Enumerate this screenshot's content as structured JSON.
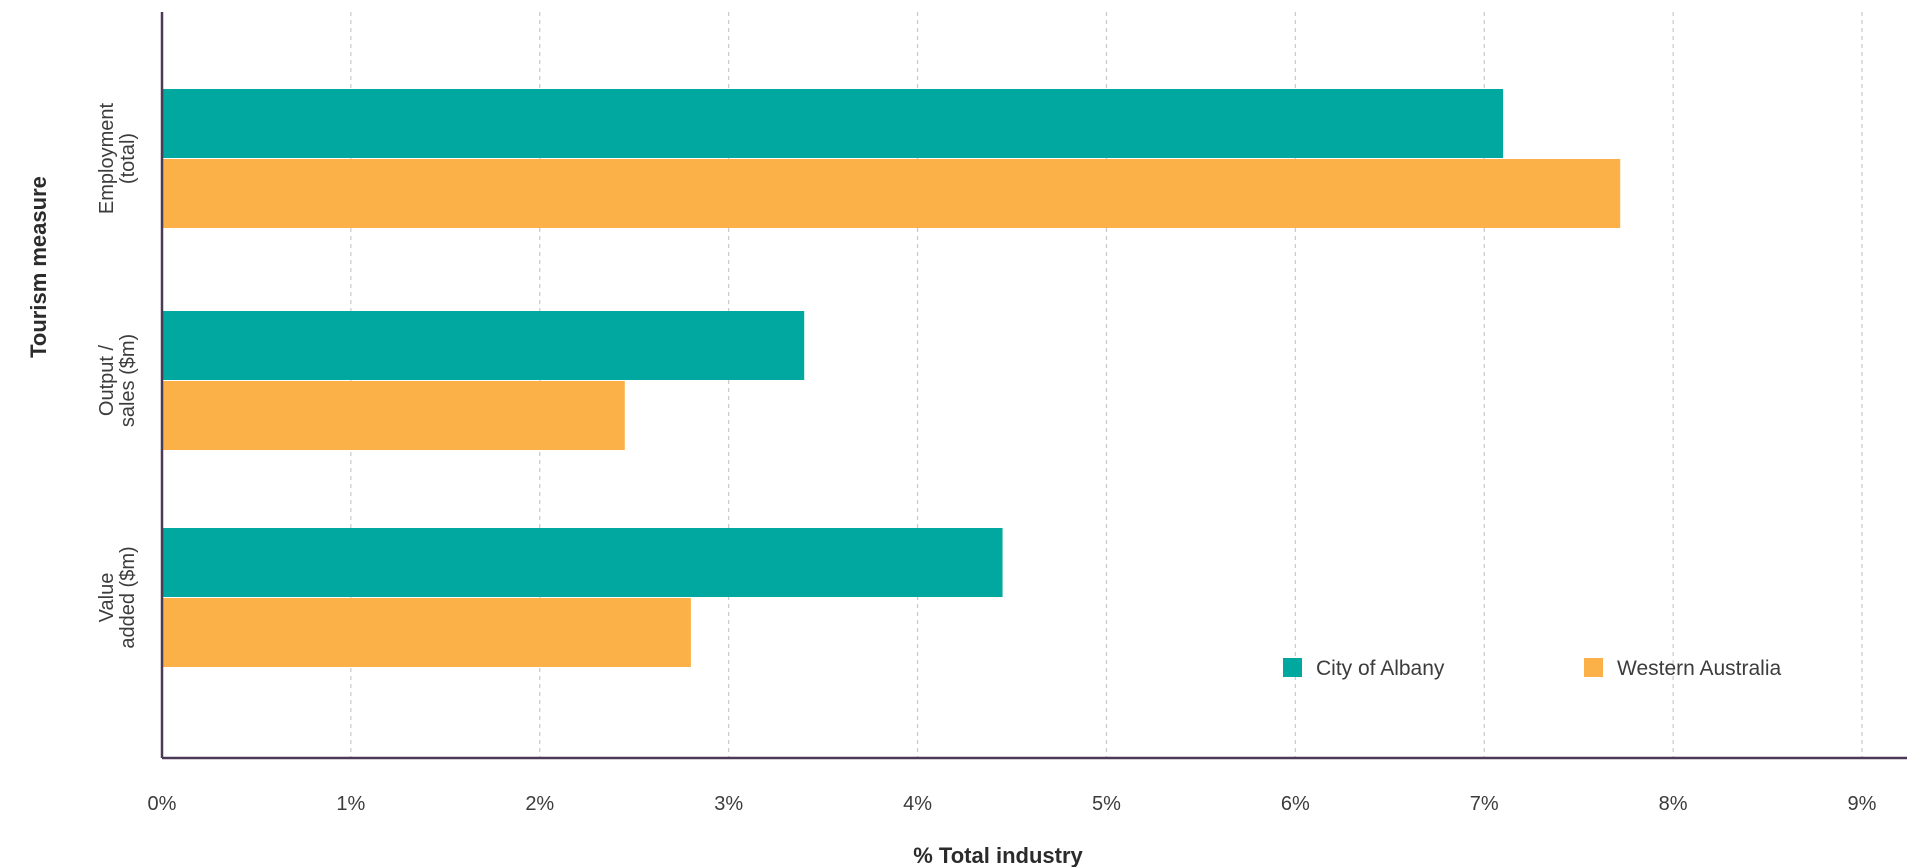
{
  "chart_data": {
    "type": "bar",
    "orientation": "horizontal",
    "categories": [
      [
        "Employment",
        "(total)"
      ],
      [
        "Output /",
        "sales ($m)"
      ],
      [
        "Value",
        "added ($m)"
      ]
    ],
    "series": [
      {
        "name": "City of Albany",
        "color": "#00a8a0",
        "values": [
          7.1,
          3.4,
          4.45
        ]
      },
      {
        "name": "Western Australia",
        "color": "#fbb147",
        "values": [
          7.72,
          2.45,
          2.8
        ]
      }
    ],
    "xlabel": "% Total industry",
    "ylabel": "Tourism measure",
    "xlim": [
      0,
      9
    ],
    "xticks": [
      {
        "value": 0,
        "label": "0%"
      },
      {
        "value": 1,
        "label": "1%"
      },
      {
        "value": 2,
        "label": "2%"
      },
      {
        "value": 3,
        "label": "3%"
      },
      {
        "value": 4,
        "label": "4%"
      },
      {
        "value": 5,
        "label": "5%"
      },
      {
        "value": 6,
        "label": "6%"
      },
      {
        "value": 7,
        "label": "7%"
      },
      {
        "value": 8,
        "label": "8%"
      },
      {
        "value": 9,
        "label": "9%"
      }
    ],
    "grid": "vertical-dashed",
    "legend_position": "bottom-right",
    "axis_color": "#4a3a57",
    "grid_color": "#c8c8c8"
  }
}
